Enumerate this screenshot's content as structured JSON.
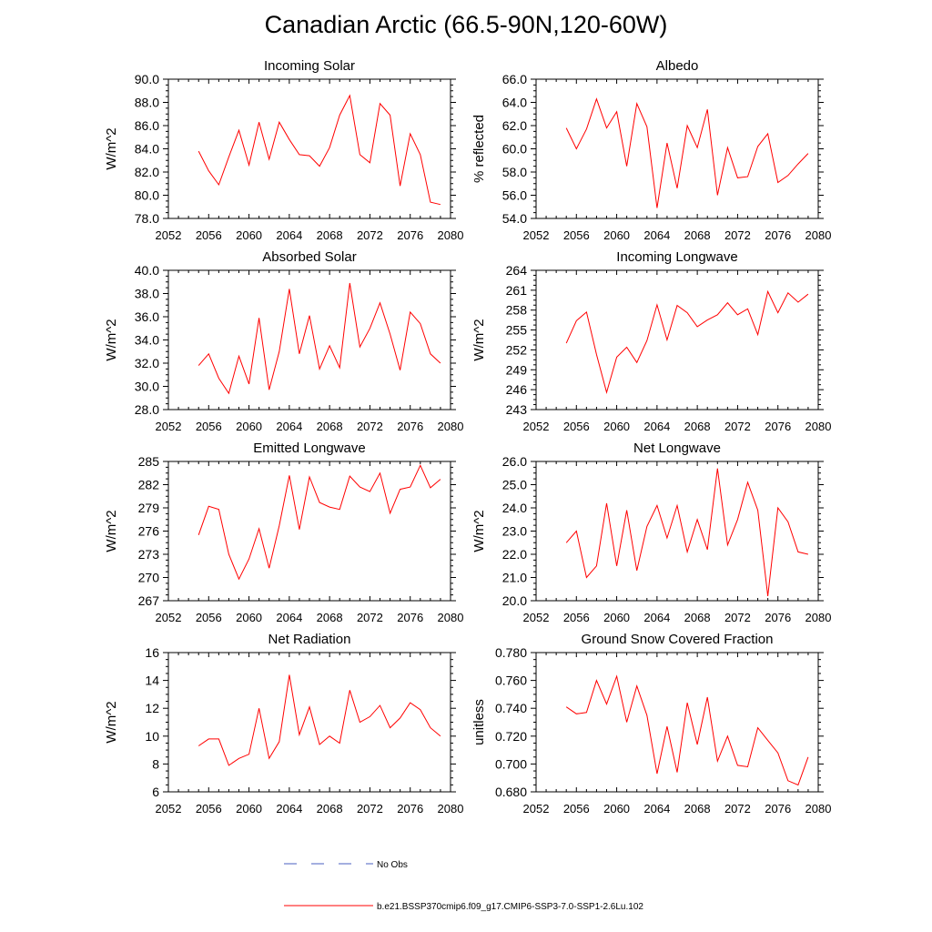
{
  "title": "Canadian Arctic (66.5-90N,120-60W)",
  "colors": {
    "series": "#ff0000",
    "obs": "#4a5fc1",
    "axis": "#000000"
  },
  "legend": {
    "obs_label": "No Obs",
    "model_label": "b.e21.BSSP370cmip6.f09_g17.CMIP6-SSP3-7.0-SSP1-2.6Lu.102"
  },
  "chart_data": [
    {
      "type": "line",
      "title": "Incoming Solar",
      "xlabel": "",
      "ylabel": "W/m^2",
      "xlim": [
        2052,
        2080
      ],
      "ylim": [
        78,
        90
      ],
      "xticks": [
        "2052",
        "2056",
        "2060",
        "2064",
        "2068",
        "2072",
        "2076",
        "2080"
      ],
      "yticks": [
        "78.0",
        "80.0",
        "82.0",
        "84.0",
        "86.0",
        "88.0",
        "90.0"
      ],
      "x": [
        2055,
        2056,
        2057,
        2058,
        2059,
        2060,
        2061,
        2062,
        2063,
        2064,
        2065,
        2066,
        2067,
        2068,
        2069,
        2070,
        2071,
        2072,
        2073,
        2074,
        2075,
        2076,
        2077,
        2078,
        2079
      ],
      "series": [
        {
          "values": [
            83.8,
            82.1,
            80.9,
            83.3,
            85.6,
            82.6,
            86.3,
            83.1,
            86.3,
            84.8,
            83.5,
            83.4,
            82.5,
            84.1,
            86.9,
            88.6,
            83.5,
            82.8,
            87.9,
            86.9,
            80.8,
            85.3,
            83.5,
            79.4,
            79.2
          ]
        }
      ]
    },
    {
      "type": "line",
      "title": "Albedo",
      "xlabel": "",
      "ylabel": "% reflected",
      "xlim": [
        2052,
        2080
      ],
      "ylim": [
        54,
        66
      ],
      "xticks": [
        "2052",
        "2056",
        "2060",
        "2064",
        "2068",
        "2072",
        "2076",
        "2080"
      ],
      "yticks": [
        "54.0",
        "56.0",
        "58.0",
        "60.0",
        "62.0",
        "64.0",
        "66.0"
      ],
      "x": [
        2055,
        2056,
        2057,
        2058,
        2059,
        2060,
        2061,
        2062,
        2063,
        2064,
        2065,
        2066,
        2067,
        2068,
        2069,
        2070,
        2071,
        2072,
        2073,
        2074,
        2075,
        2076,
        2077,
        2078,
        2079
      ],
      "series": [
        {
          "values": [
            61.8,
            60.0,
            61.7,
            64.3,
            61.8,
            63.2,
            58.5,
            63.9,
            61.9,
            54.9,
            60.5,
            56.6,
            62.0,
            60.1,
            63.4,
            56.0,
            60.1,
            57.5,
            57.6,
            60.2,
            61.3,
            57.1,
            57.7,
            58.7,
            59.6
          ]
        }
      ]
    },
    {
      "type": "line",
      "title": "Absorbed Solar",
      "xlabel": "",
      "ylabel": "W/m^2",
      "xlim": [
        2052,
        2080
      ],
      "ylim": [
        28,
        40
      ],
      "xticks": [
        "2052",
        "2056",
        "2060",
        "2064",
        "2068",
        "2072",
        "2076",
        "2080"
      ],
      "yticks": [
        "28.0",
        "30.0",
        "32.0",
        "34.0",
        "36.0",
        "38.0",
        "40.0"
      ],
      "x": [
        2055,
        2056,
        2057,
        2058,
        2059,
        2060,
        2061,
        2062,
        2063,
        2064,
        2065,
        2066,
        2067,
        2068,
        2069,
        2070,
        2071,
        2072,
        2073,
        2074,
        2075,
        2076,
        2077,
        2078,
        2079
      ],
      "series": [
        {
          "values": [
            31.8,
            32.8,
            30.7,
            29.4,
            32.6,
            30.2,
            35.9,
            29.7,
            33.0,
            38.4,
            32.8,
            36.1,
            31.5,
            33.5,
            31.6,
            38.9,
            33.4,
            35.0,
            37.2,
            34.5,
            31.4,
            36.4,
            35.4,
            32.8,
            32.0
          ]
        }
      ]
    },
    {
      "type": "line",
      "title": "Incoming Longwave",
      "xlabel": "",
      "ylabel": "W/m^2",
      "xlim": [
        2052,
        2080
      ],
      "ylim": [
        243,
        264
      ],
      "xticks": [
        "2052",
        "2056",
        "2060",
        "2064",
        "2068",
        "2072",
        "2076",
        "2080"
      ],
      "yticks": [
        "243",
        "246",
        "249",
        "252",
        "255",
        "258",
        "261",
        "264"
      ],
      "x": [
        2055,
        2056,
        2057,
        2058,
        2059,
        2060,
        2061,
        2062,
        2063,
        2064,
        2065,
        2066,
        2067,
        2068,
        2069,
        2070,
        2071,
        2072,
        2073,
        2074,
        2075,
        2076,
        2077,
        2078,
        2079
      ],
      "series": [
        {
          "values": [
            253.0,
            256.4,
            257.7,
            251.3,
            245.6,
            250.9,
            252.4,
            250.1,
            253.4,
            258.8,
            253.5,
            258.7,
            257.6,
            255.5,
            256.5,
            257.3,
            259.1,
            257.3,
            258.2,
            254.3,
            260.8,
            257.6,
            260.6,
            259.2,
            260.4
          ]
        }
      ]
    },
    {
      "type": "line",
      "title": "Emitted Longwave",
      "xlabel": "",
      "ylabel": "W/m^2",
      "xlim": [
        2052,
        2080
      ],
      "ylim": [
        267,
        285
      ],
      "xticks": [
        "2052",
        "2056",
        "2060",
        "2064",
        "2068",
        "2072",
        "2076",
        "2080"
      ],
      "yticks": [
        "267",
        "270",
        "273",
        "276",
        "279",
        "282",
        "285"
      ],
      "x": [
        2055,
        2056,
        2057,
        2058,
        2059,
        2060,
        2061,
        2062,
        2063,
        2064,
        2065,
        2066,
        2067,
        2068,
        2069,
        2070,
        2071,
        2072,
        2073,
        2074,
        2075,
        2076,
        2077,
        2078,
        2079
      ],
      "series": [
        {
          "values": [
            275.5,
            279.2,
            278.8,
            273.0,
            269.8,
            272.4,
            276.3,
            271.2,
            276.7,
            283.2,
            276.2,
            283.0,
            279.7,
            279.1,
            278.8,
            283.1,
            281.7,
            281.1,
            283.5,
            278.3,
            281.4,
            281.7,
            284.5,
            281.6,
            282.7
          ]
        }
      ]
    },
    {
      "type": "line",
      "title": "Net Longwave",
      "xlabel": "",
      "ylabel": "W/m^2",
      "xlim": [
        2052,
        2080
      ],
      "ylim": [
        20,
        26
      ],
      "xticks": [
        "2052",
        "2056",
        "2060",
        "2064",
        "2068",
        "2072",
        "2076",
        "2080"
      ],
      "yticks": [
        "20.0",
        "21.0",
        "22.0",
        "23.0",
        "24.0",
        "25.0",
        "26.0"
      ],
      "x": [
        2055,
        2056,
        2057,
        2058,
        2059,
        2060,
        2061,
        2062,
        2063,
        2064,
        2065,
        2066,
        2067,
        2068,
        2069,
        2070,
        2071,
        2072,
        2073,
        2074,
        2075,
        2076,
        2077,
        2078,
        2079
      ],
      "series": [
        {
          "values": [
            22.5,
            23.0,
            21.0,
            21.5,
            24.2,
            21.5,
            23.9,
            21.3,
            23.2,
            24.1,
            22.7,
            24.1,
            22.1,
            23.5,
            22.2,
            25.7,
            22.4,
            23.5,
            25.1,
            23.9,
            20.2,
            24.0,
            23.4,
            22.1,
            22.0
          ]
        }
      ]
    },
    {
      "type": "line",
      "title": "Net Radiation",
      "xlabel": "",
      "ylabel": "W/m^2",
      "xlim": [
        2052,
        2080
      ],
      "ylim": [
        6,
        16
      ],
      "xticks": [
        "2052",
        "2056",
        "2060",
        "2064",
        "2068",
        "2072",
        "2076",
        "2080"
      ],
      "yticks": [
        "6",
        "8",
        "10",
        "12",
        "14",
        "16"
      ],
      "x": [
        2055,
        2056,
        2057,
        2058,
        2059,
        2060,
        2061,
        2062,
        2063,
        2064,
        2065,
        2066,
        2067,
        2068,
        2069,
        2070,
        2071,
        2072,
        2073,
        2074,
        2075,
        2076,
        2077,
        2078,
        2079
      ],
      "series": [
        {
          "values": [
            9.3,
            9.8,
            9.8,
            7.9,
            8.4,
            8.7,
            12.0,
            8.4,
            9.6,
            14.4,
            10.1,
            12.1,
            9.4,
            10.0,
            9.5,
            13.3,
            11.0,
            11.4,
            12.2,
            10.6,
            11.3,
            12.4,
            11.9,
            10.6,
            10.0
          ]
        }
      ]
    },
    {
      "type": "line",
      "title": "Ground Snow Covered Fraction",
      "xlabel": "",
      "ylabel": "unitless",
      "xlim": [
        2052,
        2080
      ],
      "ylim": [
        0.68,
        0.78
      ],
      "xticks": [
        "2052",
        "2056",
        "2060",
        "2064",
        "2068",
        "2072",
        "2076",
        "2080"
      ],
      "yticks": [
        "0.680",
        "0.700",
        "0.720",
        "0.740",
        "0.760",
        "0.780"
      ],
      "x": [
        2055,
        2056,
        2057,
        2058,
        2059,
        2060,
        2061,
        2062,
        2063,
        2064,
        2065,
        2066,
        2067,
        2068,
        2069,
        2070,
        2071,
        2072,
        2073,
        2074,
        2075,
        2076,
        2077,
        2078,
        2079
      ],
      "series": [
        {
          "values": [
            0.741,
            0.736,
            0.737,
            0.76,
            0.743,
            0.763,
            0.73,
            0.756,
            0.735,
            0.693,
            0.727,
            0.694,
            0.744,
            0.714,
            0.748,
            0.702,
            0.72,
            0.699,
            0.698,
            0.726,
            0.717,
            0.708,
            0.688,
            0.685,
            0.705
          ]
        }
      ]
    }
  ]
}
